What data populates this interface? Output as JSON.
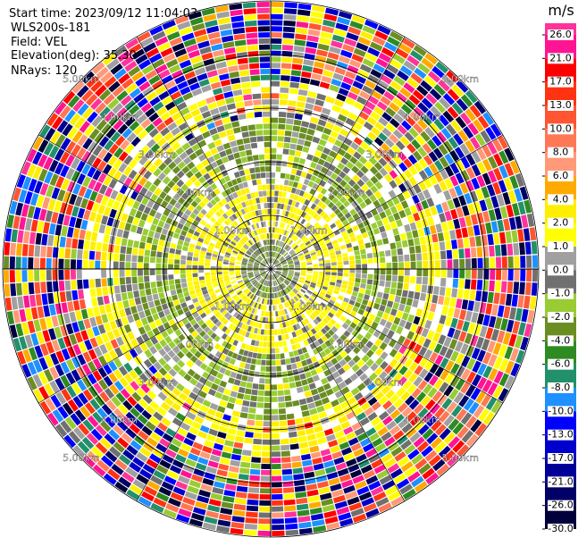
{
  "chart_data": {
    "type": "ppi",
    "header": [
      "Start time: 2023/09/12 11:04:03",
      "WLS200s-181",
      "Field: VEL",
      "Elevation(deg): 35.30",
      "NRays: 120"
    ],
    "colorbar_title": "m/s",
    "colorbar_ticks": [
      {
        "value": 26,
        "label": "26.0"
      },
      {
        "value": 21,
        "label": "21.0"
      },
      {
        "value": 17,
        "label": "17.0"
      },
      {
        "value": 13,
        "label": "13.0"
      },
      {
        "value": 10,
        "label": "10.0"
      },
      {
        "value": 8,
        "label": "8.0"
      },
      {
        "value": 6,
        "label": "6.0"
      },
      {
        "value": 4,
        "label": "4.0"
      },
      {
        "value": 2,
        "label": "2.0"
      },
      {
        "value": 1,
        "label": "1.0"
      },
      {
        "value": 0,
        "label": "0.0"
      },
      {
        "value": -1,
        "label": "-1.0"
      },
      {
        "value": -2,
        "label": "-2.0"
      },
      {
        "value": -4,
        "label": "-4.0"
      },
      {
        "value": -6,
        "label": "-6.0"
      },
      {
        "value": -8,
        "label": "-8.0"
      },
      {
        "value": -10,
        "label": "-10.0"
      },
      {
        "value": -13,
        "label": "-13.0"
      },
      {
        "value": -17,
        "label": "-17.0"
      },
      {
        "value": -21,
        "label": "-21.0"
      },
      {
        "value": -26,
        "label": "-26.0"
      },
      {
        "value": -30,
        "label": "-30.0"
      }
    ],
    "colorbar_colors": [
      "#ff3399",
      "#ff1493",
      "#ff0000",
      "#ff3311",
      "#ff5533",
      "#ff7755",
      "#ff9977",
      "#ffaa00",
      "#ffee00",
      "#ffff00",
      "#a0a0a0",
      "#707070",
      "#99cc33",
      "#6b8e23",
      "#2e8b22",
      "#22906a",
      "#1e90ff",
      "#0000ff",
      "#0000cc",
      "#000099",
      "#000066",
      "#00003a"
    ],
    "range_rings": [
      {
        "value": 1,
        "label": "1.00km"
      },
      {
        "value": 2,
        "label": "2.00km"
      },
      {
        "value": 3,
        "label": "3.00km"
      },
      {
        "value": 4,
        "label": "4.00km"
      },
      {
        "value": 5,
        "label": "5.00km"
      }
    ]
  }
}
